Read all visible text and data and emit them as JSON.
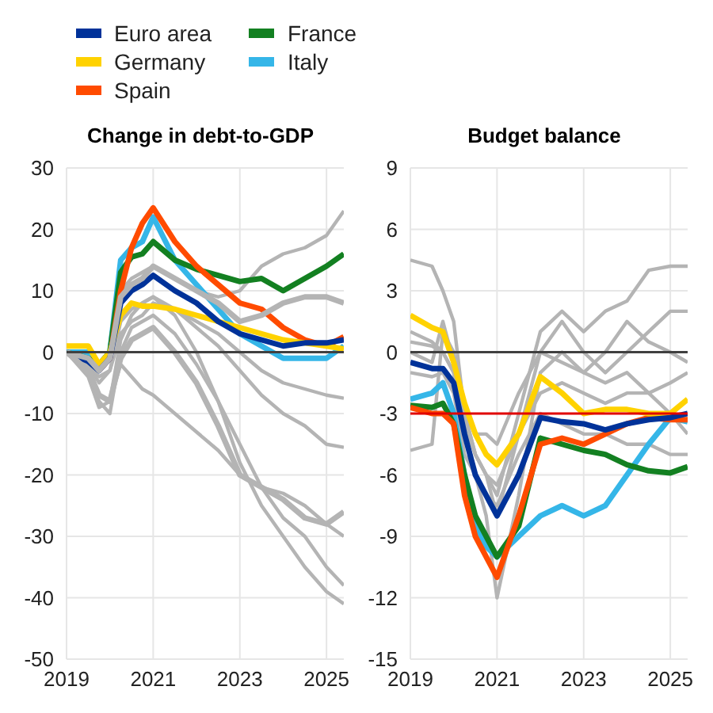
{
  "chart_data": [
    {
      "type": "line",
      "title": "Change in debt-to-GDP",
      "legend": "top",
      "grid": true,
      "marker": "none",
      "line_style": "solid",
      "xlim": [
        2019,
        2025.4
      ],
      "xticks": [
        2019,
        2021,
        2023,
        2025
      ],
      "ylim": [
        -50,
        30
      ],
      "yticks": [
        -50,
        -40,
        -30,
        -20,
        -10,
        0,
        10,
        20,
        30
      ],
      "x": [
        2019,
        2019.5,
        2019.75,
        2020,
        2020.25,
        2020.5,
        2020.75,
        2021,
        2021.5,
        2022,
        2022.5,
        2023,
        2023.5,
        2024,
        2024.5,
        2025,
        2025.4
      ],
      "ref_lines": [
        {
          "axis": "y",
          "value": 0,
          "color": "#404040"
        }
      ],
      "series": [
        {
          "color": "#b4b4b4",
          "values": [
            0,
            -1,
            -3,
            0,
            10,
            12,
            13,
            14,
            12,
            10,
            9,
            10,
            14,
            16,
            17,
            19,
            23
          ]
        },
        {
          "color": "#b4b4b4",
          "values": [
            0,
            -2,
            -5,
            -3,
            3,
            5,
            6,
            8,
            7,
            5,
            3,
            0,
            -3,
            -5,
            -6,
            -7,
            -7.5
          ]
        },
        {
          "color": "#b4b4b4",
          "values": [
            0,
            -4,
            -9,
            -8,
            -2,
            -4,
            -6,
            -7,
            -10,
            -13,
            -16,
            -20,
            -22,
            -23,
            -25,
            -28,
            -30
          ]
        },
        {
          "color": "#b4b4b4",
          "values": [
            0,
            -3,
            -8,
            -10,
            0,
            4,
            5,
            6,
            3,
            -2,
            -8,
            -15,
            -22,
            -27,
            -30,
            -35,
            -38
          ]
        },
        {
          "color": "#b4b4b4",
          "values": [
            0,
            -2,
            -7,
            -8,
            2,
            6,
            8,
            9,
            6,
            0,
            -8,
            -18,
            -25,
            -30,
            -35,
            -39,
            -41
          ]
        },
        {
          "color": "#b4b4b4",
          "values": [
            0,
            -2,
            -4,
            -3,
            5,
            7,
            8,
            9,
            7,
            4,
            1,
            -3,
            -7,
            -10,
            -12,
            -15,
            -15.5
          ]
        },
        {
          "color": "#b4b4b4",
          "values": [
            0,
            -1,
            -3,
            -1,
            9,
            11,
            12,
            14,
            12,
            10,
            8,
            5,
            6,
            8,
            9,
            9,
            8
          ]
        },
        {
          "color": "#b4b4b4",
          "values": [
            0,
            -3,
            -7,
            -8,
            -1,
            2,
            3,
            4,
            0,
            -5,
            -12,
            -20,
            -22,
            -24,
            -27,
            -28,
            -26
          ]
        },
        {
          "name": "Euro area",
          "color": "#003299",
          "values": [
            0,
            -1.5,
            -3,
            -1,
            8,
            10,
            11,
            12.5,
            10,
            8,
            5,
            3,
            2,
            1,
            1.5,
            1.5,
            2
          ]
        },
        {
          "name": "Germany",
          "color": "#ffd200",
          "values": [
            1,
            1,
            -2,
            0,
            6,
            8,
            7.5,
            7.5,
            7,
            6,
            5,
            4,
            3,
            2,
            1.5,
            1,
            0.5
          ]
        },
        {
          "name": "Spain",
          "color": "#ff4b00",
          "values": [
            null,
            null,
            -3,
            -1,
            10,
            17,
            21,
            23.5,
            18,
            14,
            11,
            8,
            7,
            4,
            2,
            1,
            2.5
          ]
        },
        {
          "name": "France",
          "color": "#138021",
          "values": [
            0,
            -1,
            -2,
            0,
            13,
            15.5,
            16,
            18,
            15,
            13.5,
            12.5,
            11.5,
            12,
            10,
            12,
            14,
            16
          ]
        },
        {
          "name": "Italy",
          "color": "#35b6e8",
          "values": [
            0,
            0,
            -2,
            0,
            15,
            17,
            18,
            22,
            15,
            11,
            7,
            3,
            1,
            -1,
            -1,
            -1,
            1
          ]
        }
      ]
    },
    {
      "type": "line",
      "title": "Budget balance",
      "grid": true,
      "marker": "none",
      "line_style": "solid",
      "xlim": [
        2019,
        2025.4
      ],
      "xticks": [
        2019,
        2021,
        2023,
        2025
      ],
      "ylim": [
        -15,
        9
      ],
      "yticks": [
        -15,
        -12,
        -9,
        -6,
        -3,
        0,
        3,
        6,
        9
      ],
      "x": [
        2019,
        2019.5,
        2019.75,
        2020,
        2020.25,
        2020.5,
        2020.75,
        2021,
        2021.5,
        2022,
        2022.5,
        2023,
        2023.5,
        2024,
        2024.5,
        2025,
        2025.4
      ],
      "ref_lines": [
        {
          "axis": "y",
          "value": 0,
          "color": "#404040"
        },
        {
          "axis": "y",
          "value": -3,
          "color": "#e00000"
        }
      ],
      "series": [
        {
          "color": "#b4b4b4",
          "values": [
            4.5,
            4.2,
            3,
            1.5,
            -3,
            -5,
            -6,
            -7,
            -3,
            1,
            2,
            1,
            2,
            2.5,
            4,
            4.2,
            4.2
          ]
        },
        {
          "color": "#b4b4b4",
          "values": [
            -4.8,
            -4.5,
            1,
            0,
            -3,
            -5,
            -6,
            -8,
            -4,
            0,
            1.5,
            0,
            -1,
            0,
            1,
            2,
            2
          ]
        },
        {
          "color": "#b4b4b4",
          "values": [
            0.5,
            0.3,
            0,
            -1,
            -4,
            -6,
            -8,
            -12,
            -7,
            -1,
            0,
            -1,
            -1.5,
            -1,
            -2,
            -3,
            -4
          ]
        },
        {
          "color": "#b4b4b4",
          "values": [
            0,
            -0.5,
            1.5,
            -0.5,
            -3,
            -4,
            -4,
            -4.5,
            -2,
            0,
            -0.5,
            -1,
            0,
            1.5,
            0.5,
            0,
            -0.5
          ]
        },
        {
          "color": "#b4b4b4",
          "values": [
            -1,
            -1.2,
            -1,
            -2,
            -5,
            -6,
            -7,
            -7.5,
            -5,
            -3,
            -3.5,
            -4,
            -4,
            -4.5,
            -4.5,
            -5,
            -5
          ]
        },
        {
          "color": "#b4b4b4",
          "values": [
            1,
            0.5,
            0,
            -1,
            -3.5,
            -5,
            -6,
            -6.5,
            -4,
            -2,
            -1.5,
            -2,
            -2.5,
            -2,
            -2,
            -1.5,
            -1
          ]
        },
        {
          "color": "#003299",
          "values": [
            -0.5,
            -0.8,
            -0.8,
            -1.5,
            -4,
            -6,
            -7,
            -8,
            -6,
            -3.2,
            -3.4,
            -3.5,
            -3.8,
            -3.5,
            -3.3,
            -3.2,
            -3
          ]
        },
        {
          "color": "#ffd200",
          "values": [
            1.8,
            1.2,
            1,
            -0.5,
            -2.5,
            -4,
            -5,
            -5.5,
            -4,
            -1.2,
            -2,
            -3,
            -2.8,
            -2.8,
            -3,
            -3,
            -2.3
          ]
        },
        {
          "color": "#ff4b00",
          "values": [
            -2.7,
            -3,
            -3,
            -3.5,
            -7,
            -9,
            -10,
            -11,
            -8,
            -4.5,
            -4.2,
            -4.5,
            -4,
            -3.5,
            -3.2,
            -3.3,
            -3.3
          ]
        },
        {
          "color": "#138021",
          "values": [
            -2.6,
            -2.7,
            -2.5,
            -3.5,
            -6,
            -8,
            -9,
            -10,
            -8.5,
            -4.2,
            -4.5,
            -4.8,
            -5,
            -5.5,
            -5.8,
            -5.9,
            -5.6
          ]
        },
        {
          "color": "#35b6e8",
          "values": [
            -2.3,
            -2,
            -1.5,
            -3,
            -6,
            -8.5,
            -9.5,
            -10,
            -9,
            -8,
            -7.5,
            -8,
            -7.5,
            -6,
            -4.5,
            -3.2,
            -3.4
          ]
        }
      ]
    }
  ]
}
